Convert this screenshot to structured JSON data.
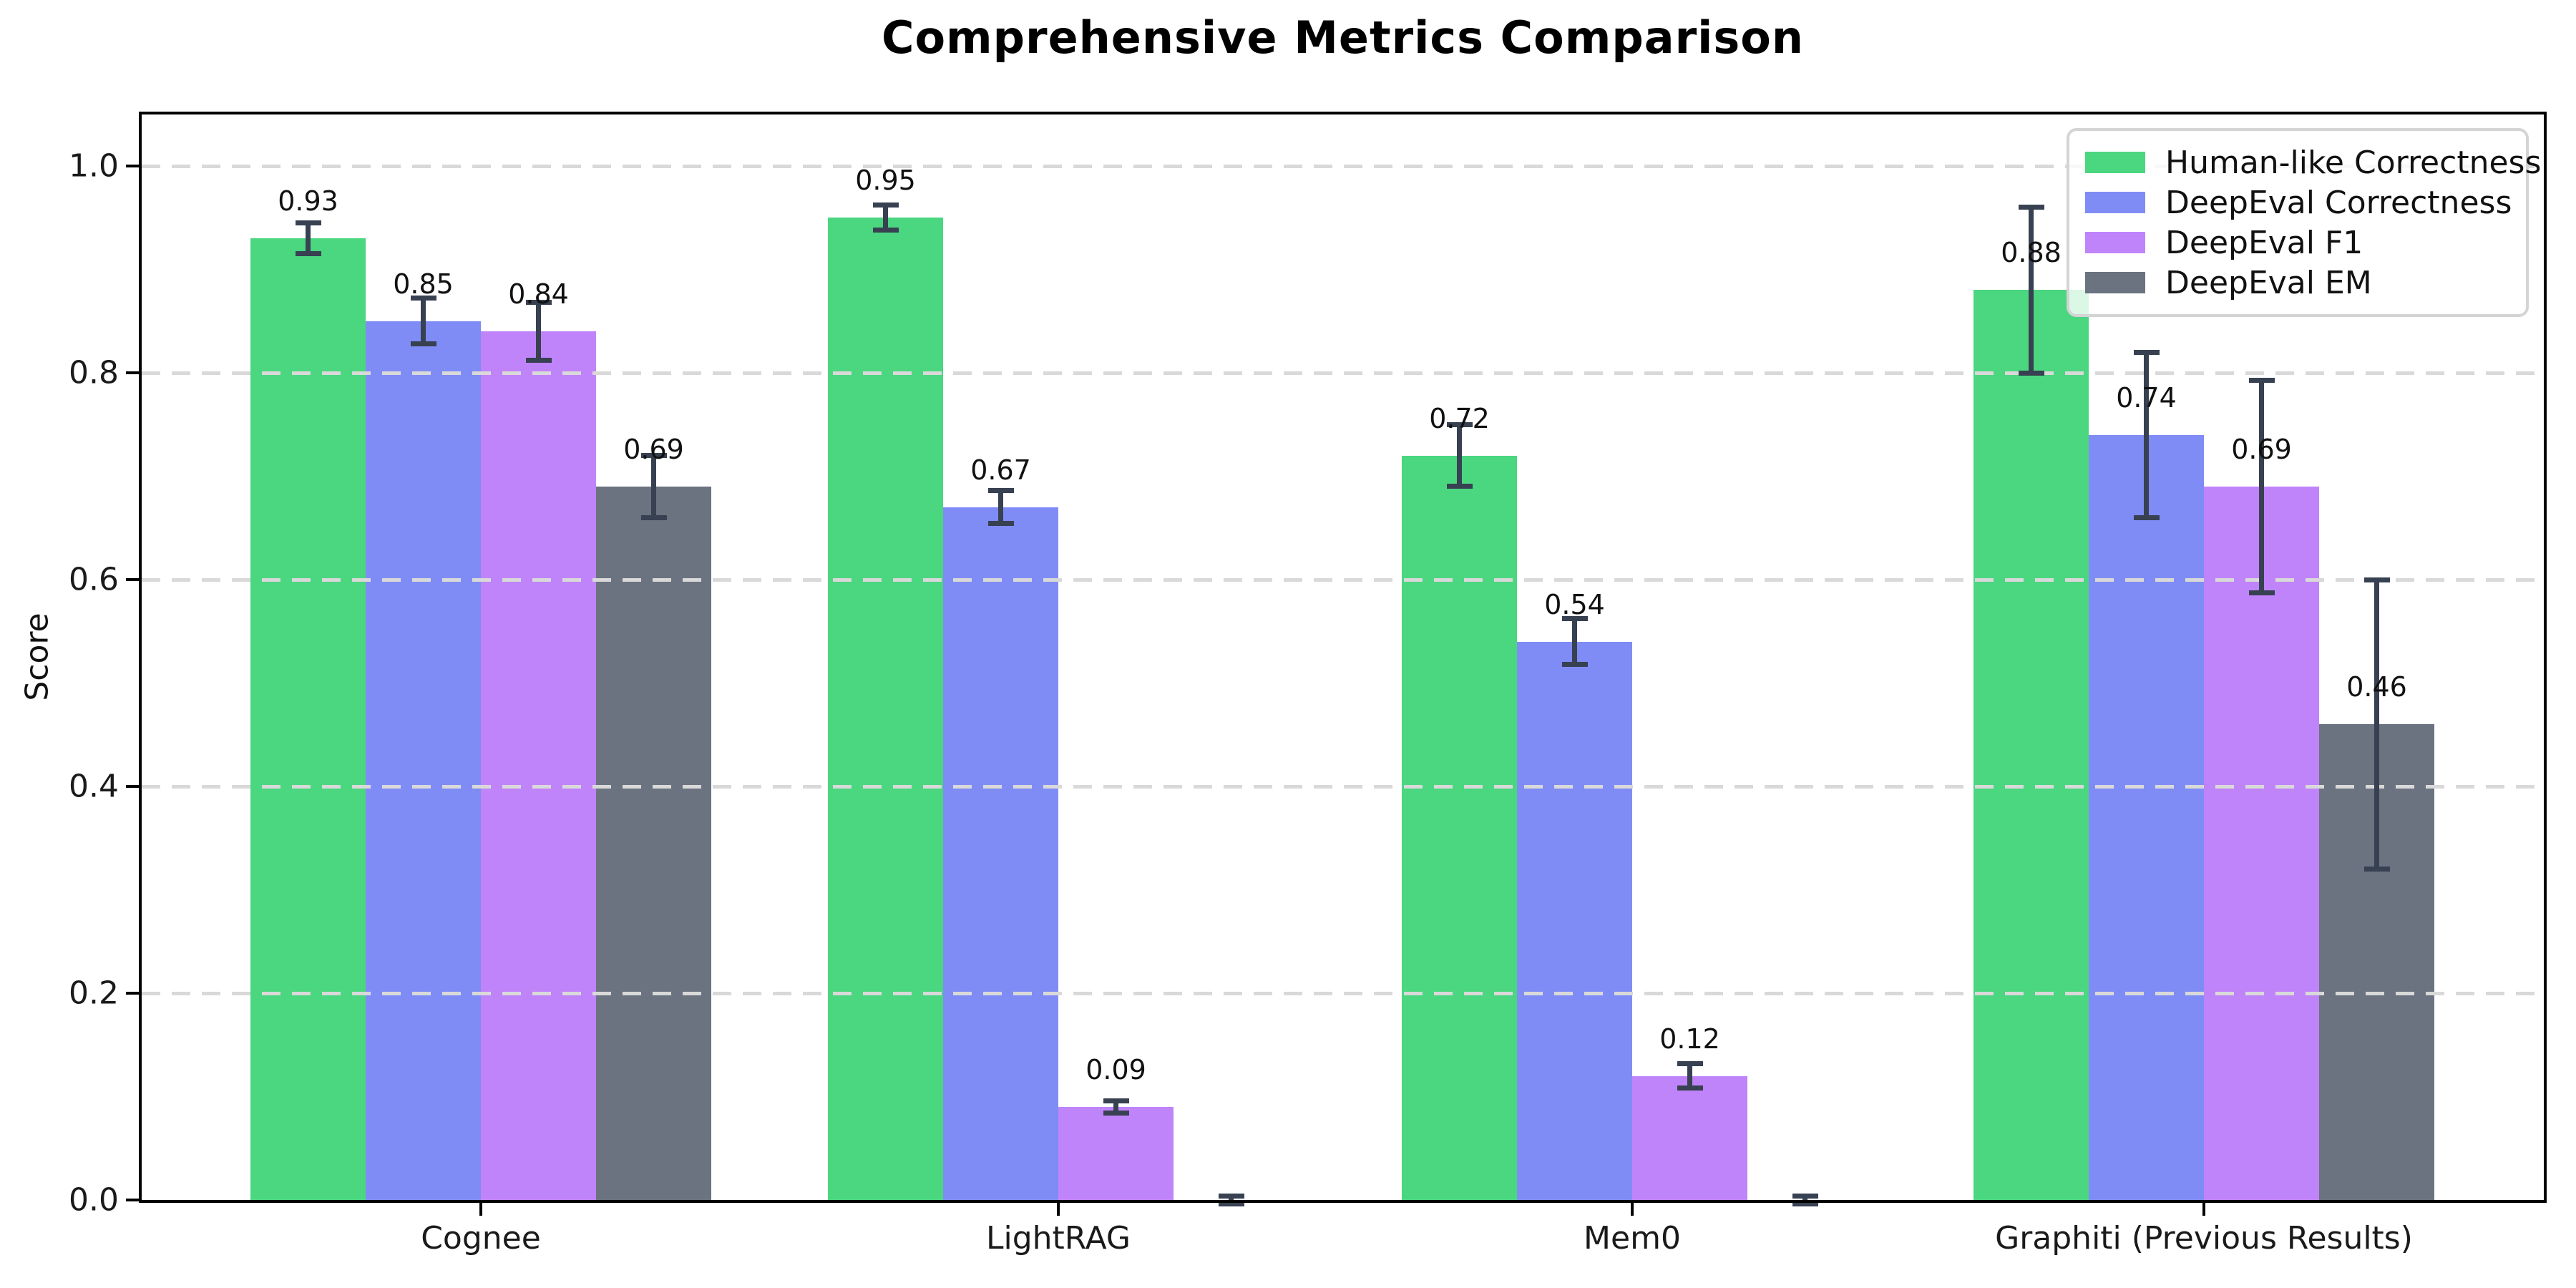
{
  "chart_data": {
    "type": "bar",
    "title": "Comprehensive Metrics Comparison",
    "ylabel": "Score",
    "xlabel": "",
    "ylim": [
      0,
      1.05
    ],
    "yticks": [
      0.0,
      0.2,
      0.4,
      0.6,
      0.8,
      1.0
    ],
    "grid": "horizontal dashed gridlines at y ticks",
    "legend_position": "upper right",
    "categories": [
      "Cognee",
      "LightRAG",
      "Mem0",
      "Graphiti (Previous Results)"
    ],
    "series": [
      {
        "name": "Human-like Correctness",
        "color": "#4bd680",
        "values": [
          0.93,
          0.95,
          0.72,
          0.88
        ],
        "errors": [
          0.015,
          0.012,
          0.03,
          0.08
        ],
        "bar_labels": [
          "0.93",
          "0.95",
          "0.72",
          "0.88"
        ]
      },
      {
        "name": "DeepEval Correctness",
        "color": "#808cf5",
        "values": [
          0.85,
          0.67,
          0.54,
          0.74
        ],
        "errors": [
          0.022,
          0.016,
          0.022,
          0.08
        ],
        "bar_labels": [
          "0.85",
          "0.67",
          "0.54",
          "0.74"
        ]
      },
      {
        "name": "DeepEval F1",
        "color": "#c084fa",
        "values": [
          0.84,
          0.09,
          0.12,
          0.69
        ],
        "errors": [
          0.028,
          0.006,
          0.012,
          0.103
        ],
        "bar_labels": [
          "0.84",
          "0.09",
          "0.12",
          "0.69"
        ]
      },
      {
        "name": "DeepEval EM",
        "color": "#6b7280",
        "values": [
          0.69,
          0.0,
          0.0,
          0.46
        ],
        "errors": [
          0.03,
          0.004,
          0.004,
          0.14
        ],
        "bar_labels": [
          "0.69",
          "",
          "",
          "0.46"
        ]
      }
    ],
    "error_bar_color": "#374151"
  }
}
